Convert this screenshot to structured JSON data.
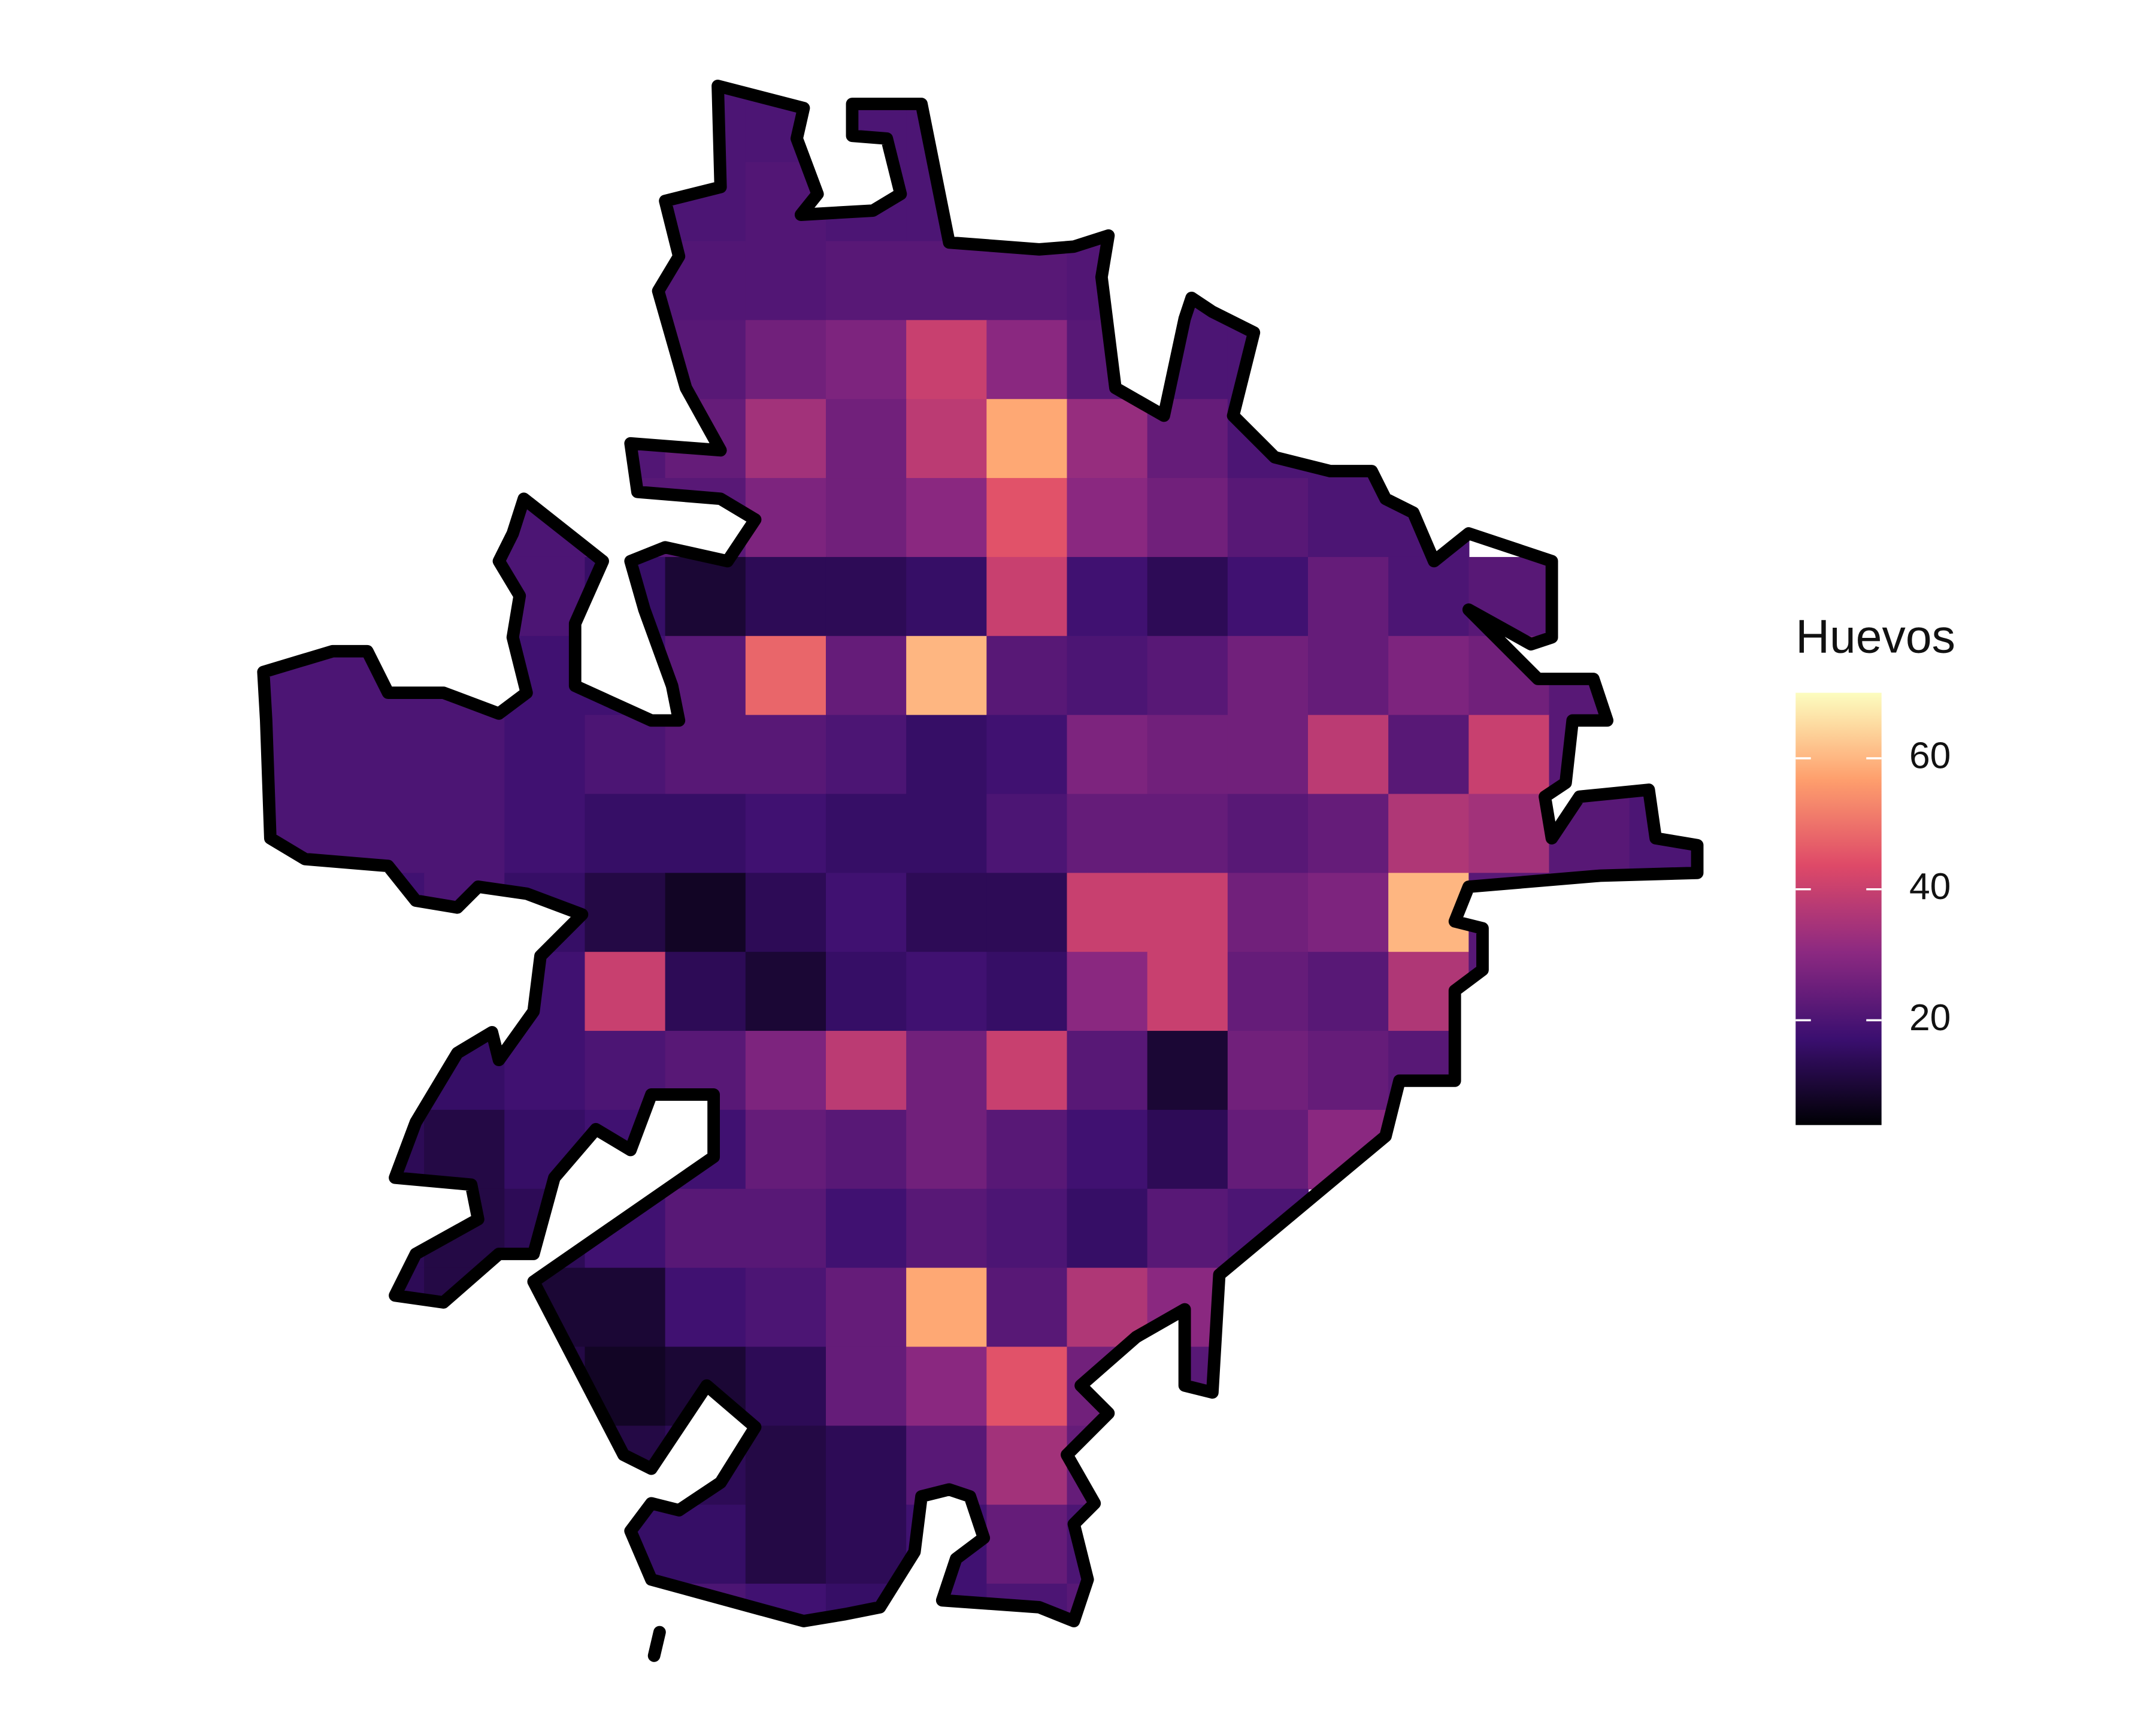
{
  "chart_data": {
    "type": "heatmap",
    "legend_title": "Huevos",
    "legend_position": "right",
    "colormap": [
      "#000004",
      "#3b0f70",
      "#8c2981",
      "#de4968",
      "#fe9f6d",
      "#fcfdbf"
    ],
    "zlim": [
      4,
      70
    ],
    "zticks": [
      20,
      40,
      60
    ],
    "z": [
      [
        null,
        null,
        null,
        null,
        null,
        20,
        20,
        20,
        20,
        null,
        null,
        null,
        null,
        null,
        null,
        null,
        null,
        null
      ],
      [
        null,
        null,
        null,
        null,
        null,
        20,
        21,
        20,
        20,
        20,
        20,
        null,
        null,
        null,
        null,
        null,
        null,
        null
      ],
      [
        null,
        null,
        null,
        null,
        20,
        21,
        21,
        22,
        22,
        22,
        21,
        20,
        20,
        null,
        null,
        null,
        null,
        null
      ],
      [
        null,
        null,
        null,
        null,
        20,
        22,
        26,
        28,
        40,
        30,
        22,
        20,
        20,
        null,
        null,
        null,
        null,
        null
      ],
      [
        null,
        null,
        null,
        null,
        21,
        24,
        34,
        26,
        38,
        58,
        32,
        24,
        20,
        20,
        null,
        null,
        null,
        null
      ],
      [
        null,
        null,
        20,
        20,
        22,
        22,
        28,
        26,
        30,
        45,
        30,
        26,
        22,
        20,
        20,
        null,
        null,
        null
      ],
      [
        null,
        null,
        20,
        20,
        16,
        10,
        14,
        14,
        16,
        40,
        18,
        14,
        18,
        24,
        20,
        22,
        20,
        null
      ],
      [
        20,
        20,
        20,
        18,
        18,
        22,
        48,
        24,
        60,
        22,
        20,
        22,
        26,
        24,
        28,
        26,
        22,
        null
      ],
      [
        20,
        20,
        20,
        18,
        20,
        22,
        22,
        20,
        16,
        18,
        28,
        26,
        26,
        38,
        22,
        40,
        22,
        null
      ],
      [
        20,
        20,
        20,
        18,
        16,
        16,
        18,
        16,
        16,
        20,
        24,
        24,
        22,
        24,
        36,
        34,
        22,
        20
      ],
      [
        null,
        18,
        20,
        16,
        12,
        8,
        14,
        18,
        14,
        14,
        40,
        40,
        26,
        28,
        60,
        22,
        null,
        null
      ],
      [
        null,
        null,
        null,
        18,
        40,
        14,
        10,
        16,
        18,
        16,
        30,
        40,
        24,
        22,
        36,
        22,
        null,
        null
      ],
      [
        null,
        16,
        16,
        18,
        20,
        22,
        28,
        38,
        26,
        40,
        22,
        10,
        26,
        24,
        22,
        null,
        null,
        null
      ],
      [
        null,
        14,
        12,
        16,
        18,
        18,
        24,
        22,
        26,
        22,
        18,
        14,
        24,
        30,
        null,
        null,
        null,
        null
      ],
      [
        null,
        14,
        12,
        14,
        18,
        22,
        22,
        18,
        22,
        20,
        16,
        22,
        20,
        null,
        null,
        null,
        null,
        null
      ],
      [
        null,
        14,
        12,
        10,
        10,
        18,
        20,
        24,
        58,
        22,
        36,
        30,
        null,
        null,
        null,
        null,
        null,
        null
      ],
      [
        null,
        null,
        null,
        12,
        8,
        10,
        14,
        24,
        30,
        45,
        26,
        22,
        null,
        null,
        null,
        null,
        null,
        null
      ],
      [
        null,
        null,
        null,
        null,
        12,
        14,
        12,
        14,
        22,
        34,
        24,
        null,
        null,
        null,
        null,
        null,
        null,
        null
      ],
      [
        null,
        null,
        null,
        null,
        16,
        16,
        12,
        14,
        18,
        24,
        20,
        null,
        null,
        null,
        null,
        null,
        null,
        null
      ],
      [
        null,
        null,
        null,
        null,
        null,
        20,
        18,
        16,
        18,
        20,
        22,
        null,
        null,
        null,
        null,
        null,
        null,
        null
      ]
    ]
  }
}
